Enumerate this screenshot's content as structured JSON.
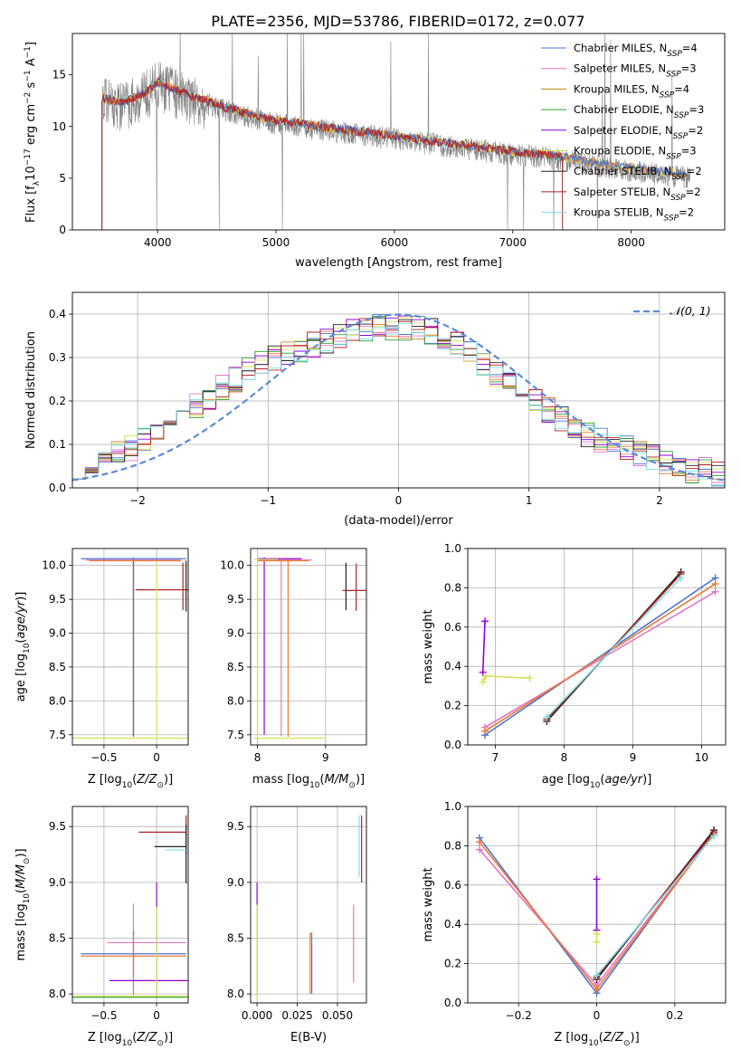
{
  "figure": {
    "title": "PLATE=2356, MJD=53786, FIBERID=0172, z=0.077"
  },
  "colors": {
    "Chabrier MILES": "#4878d0",
    "Salpeter MILES": "#e377c2",
    "Kroupa MILES": "#b8860b",
    "Chabrier ELODIE": "#2ca02c",
    "Salpeter ELODIE": "#9400d3",
    "Kroupa ELODIE": "#d4e157",
    "Chabrier STELIB": "#222222",
    "Salpeter STELIB": "#b22222",
    "Kroupa STELIB": "#7fdfe8",
    "orange": "#ee7733",
    "data": "#808080",
    "gauss": "#5b8ad8",
    "grid": "#b0b0b0"
  },
  "chart_data": [
    {
      "id": "spectrum",
      "type": "line",
      "xlabel": "wavelength [Angstrom, rest frame]",
      "ylabel": "Flux [f_λ 10^-17 erg cm^-2 s^-1 A^-1]",
      "xlim": [
        3280,
        8790
      ],
      "ylim": [
        0,
        19
      ],
      "xticks": [
        4000,
        5000,
        6000,
        7000,
        8000
      ],
      "yticks": [
        0,
        5,
        10,
        15
      ],
      "grid": false,
      "legend_position": "upper right",
      "legend": [
        {
          "name": "Chabrier MILES",
          "nssp": "4"
        },
        {
          "name": "Salpeter MILES",
          "nssp": "3"
        },
        {
          "name": "Kroupa MILES",
          "nssp": "4"
        },
        {
          "name": "Chabrier ELODIE",
          "nssp": "3"
        },
        {
          "name": "Salpeter ELODIE",
          "nssp": "2"
        },
        {
          "name": "Kroupa ELODIE",
          "nssp": "3"
        },
        {
          "name": "Chabrier STELIB",
          "nssp": "2"
        },
        {
          "name": "Salpeter STELIB",
          "nssp": "2"
        },
        {
          "name": "Kroupa STELIB",
          "nssp": "2"
        }
      ],
      "continuum_x": [
        3530,
        3700,
        3900,
        4000,
        4200,
        4500,
        4800,
        5000,
        5500,
        6000,
        6500,
        7000,
        7400,
        7700,
        8000,
        8500
      ],
      "continuum_y": [
        12.5,
        12.0,
        13.0,
        14.0,
        13.0,
        11.8,
        10.8,
        10.3,
        9.5,
        8.8,
        8.0,
        7.3,
        6.8,
        6.2,
        5.7,
        5.0
      ]
    },
    {
      "id": "residuals",
      "type": "histogram",
      "xlabel": "(data-model)/error",
      "ylabel": "Normed distribution",
      "xlim": [
        -2.5,
        2.5
      ],
      "ylim": [
        0,
        0.45
      ],
      "xticks": [
        -2,
        -1,
        0,
        1,
        2
      ],
      "yticks": [
        0.0,
        0.1,
        0.2,
        0.3,
        0.4
      ],
      "grid": true,
      "legend_label": "𝒩(0, 1)",
      "legend_position": "upper right",
      "bins": 50,
      "base_values": [
        0.05,
        0.06,
        0.07,
        0.08,
        0.09,
        0.11,
        0.13,
        0.15,
        0.17,
        0.19,
        0.21,
        0.23,
        0.25,
        0.27,
        0.29,
        0.3,
        0.31,
        0.32,
        0.33,
        0.34,
        0.35,
        0.36,
        0.36,
        0.37,
        0.37,
        0.37,
        0.37,
        0.36,
        0.35,
        0.33,
        0.31,
        0.28,
        0.26,
        0.24,
        0.22,
        0.2,
        0.18,
        0.16,
        0.14,
        0.12,
        0.11,
        0.1,
        0.09,
        0.08,
        0.07,
        0.06,
        0.05,
        0.04,
        0.04,
        0.03
      ]
    },
    {
      "id": "age-vs-Z",
      "type": "errorbar",
      "xlabel": "Z [log10(Z/Z⊙)]",
      "ylabel": "age [log10(age/yr)]",
      "xlim": [
        -0.8,
        0.3
      ],
      "ylim": [
        7.35,
        10.25
      ],
      "xticks": [
        -0.5,
        0.0
      ],
      "yticks": [
        7.5,
        8.0,
        8.5,
        9.0,
        9.5,
        10.0
      ],
      "grid": true,
      "points": [
        {
          "x": -0.22,
          "y": 10.1,
          "xerr": [
            0.5,
            0.5
          ],
          "yerr": [
            2.6,
            0.02
          ],
          "series": "Chabrier MILES"
        },
        {
          "x": -0.22,
          "y": 10.08,
          "xerr": [
            0.45,
            0.45
          ],
          "yerr": [
            2.6,
            0.02
          ],
          "series": "Salpeter MILES"
        },
        {
          "x": -0.22,
          "y": 10.07,
          "xerr": [
            0.42,
            0.45
          ],
          "yerr": [
            2.6,
            0.02
          ],
          "series": "orange"
        },
        {
          "x": 0.25,
          "y": 9.64,
          "xerr": [
            0.45,
            0.05
          ],
          "yerr": [
            0.3,
            0.4
          ],
          "series": "Salpeter STELIB"
        },
        {
          "x": 0.28,
          "y": 9.62,
          "xerr": [
            0.0,
            0.0
          ],
          "yerr": [
            0.3,
            0.45
          ],
          "series": "Chabrier STELIB"
        },
        {
          "x": 0.0,
          "y": 7.45,
          "xerr": [
            0.8,
            0.3
          ],
          "yerr": [
            0.0,
            2.6
          ],
          "series": "Kroupa ELODIE"
        },
        {
          "x": -0.22,
          "y": 7.47,
          "xerr": [
            0.0,
            0.0
          ],
          "yerr": [
            0.0,
            2.6
          ],
          "series": "Chabrier MILES"
        }
      ]
    },
    {
      "id": "age-vs-mass",
      "type": "errorbar",
      "xlabel": "mass [log10(M/M⊙)]",
      "ylabel": "",
      "xlim": [
        7.9,
        9.6
      ],
      "ylim": [
        7.35,
        10.25
      ],
      "xticks": [
        8,
        9
      ],
      "yticks": [
        7.5,
        8.0,
        8.5,
        9.0,
        9.5,
        10.0
      ],
      "grid": true,
      "points": [
        {
          "x": 8.1,
          "y": 10.1,
          "xerr": [
            0.1,
            0.55
          ],
          "yerr": [
            2.6,
            0.02
          ],
          "series": "Salpeter ELODIE"
        },
        {
          "x": 8.35,
          "y": 10.08,
          "xerr": [
            0.35,
            0.45
          ],
          "yerr": [
            2.6,
            0.02
          ],
          "series": "Salpeter MILES"
        },
        {
          "x": 8.45,
          "y": 10.07,
          "xerr": [
            0.45,
            0.3
          ],
          "yerr": [
            2.6,
            0.02
          ],
          "series": "orange"
        },
        {
          "x": 8.0,
          "y": 10.09,
          "xerr": [
            0.05,
            0.3
          ],
          "yerr": [
            2.6,
            0.02
          ],
          "series": "Kroupa ELODIE"
        },
        {
          "x": 9.3,
          "y": 9.64,
          "xerr": [
            0.0,
            0.0
          ],
          "yerr": [
            0.3,
            0.4
          ],
          "series": "Chabrier STELIB"
        },
        {
          "x": 9.45,
          "y": 9.63,
          "xerr": [
            0.2,
            0.2
          ],
          "yerr": [
            0.3,
            0.4
          ],
          "series": "Salpeter STELIB"
        },
        {
          "x": 8.0,
          "y": 7.45,
          "xerr": [
            0.05,
            1.0
          ],
          "yerr": [
            0.0,
            2.6
          ],
          "series": "Kroupa ELODIE"
        }
      ]
    },
    {
      "id": "weight-vs-age",
      "type": "line",
      "xlabel": "age [log10(age/yr)]",
      "ylabel": "mass weight",
      "xlim": [
        6.6,
        10.35
      ],
      "ylim": [
        0,
        1
      ],
      "xticks": [
        7,
        8,
        9,
        10
      ],
      "yticks": [
        0.0,
        0.2,
        0.4,
        0.6,
        0.8,
        1.0
      ],
      "grid": true,
      "series": [
        {
          "name": "Chabrier MILES",
          "x": [
            6.85,
            10.2
          ],
          "y": [
            0.05,
            0.85
          ]
        },
        {
          "name": "Salpeter MILES",
          "x": [
            6.85,
            10.2
          ],
          "y": [
            0.09,
            0.78
          ]
        },
        {
          "name": "orange",
          "x": [
            6.85,
            10.2
          ],
          "y": [
            0.07,
            0.82
          ]
        },
        {
          "name": "Chabrier STELIB",
          "x": [
            7.75,
            9.7
          ],
          "y": [
            0.12,
            0.88
          ]
        },
        {
          "name": "Salpeter STELIB",
          "x": [
            7.75,
            9.7
          ],
          "y": [
            0.13,
            0.87
          ]
        },
        {
          "name": "Kroupa STELIB",
          "x": [
            7.75,
            9.7
          ],
          "y": [
            0.14,
            0.85
          ]
        },
        {
          "name": "Salpeter ELODIE",
          "x": [
            6.82,
            6.85
          ],
          "y": [
            0.37,
            0.63
          ]
        },
        {
          "name": "Kroupa ELODIE",
          "x": [
            6.82,
            6.86,
            7.5
          ],
          "y": [
            0.32,
            0.35,
            0.34
          ]
        }
      ]
    },
    {
      "id": "mass-vs-Z",
      "type": "errorbar",
      "xlabel": "Z [log10(Z/Z⊙)]",
      "ylabel": "mass [log10(M/M⊙)]",
      "xlim": [
        -0.8,
        0.3
      ],
      "ylim": [
        7.92,
        9.68
      ],
      "xticks": [
        -0.5,
        0.0
      ],
      "yticks": [
        8.0,
        8.5,
        9.0,
        9.5
      ],
      "grid": true,
      "points": [
        {
          "x": 0.28,
          "y": 9.45,
          "xerr": [
            0.45,
            0.0
          ],
          "yerr": [
            0.2,
            0.15
          ],
          "series": "Salpeter STELIB"
        },
        {
          "x": 0.28,
          "y": 9.32,
          "xerr": [
            0.3,
            0.0
          ],
          "yerr": [
            0.33,
            0.2
          ],
          "series": "Chabrier STELIB"
        },
        {
          "x": 0.28,
          "y": 9.29,
          "xerr": [
            0.2,
            0.0
          ],
          "yerr": [
            0.0,
            0.0
          ],
          "series": "Kroupa STELIB"
        },
        {
          "x": -0.22,
          "y": 8.46,
          "xerr": [
            0.25,
            0.5
          ],
          "yerr": [
            0.3,
            0.35
          ],
          "series": "Salpeter MILES"
        },
        {
          "x": -0.22,
          "y": 8.36,
          "xerr": [
            0.5,
            0.5
          ],
          "yerr": [
            0.3,
            0.2
          ],
          "series": "Chabrier MILES"
        },
        {
          "x": -0.22,
          "y": 8.34,
          "xerr": [
            0.5,
            0.5
          ],
          "yerr": [
            0.35,
            0.2
          ],
          "series": "orange"
        },
        {
          "x": 0.0,
          "y": 8.12,
          "xerr": [
            0.45,
            0.3
          ],
          "yerr": [
            0.15,
            0.88
          ],
          "series": "Salpeter ELODIE"
        },
        {
          "x": 0.0,
          "y": 7.98,
          "xerr": [
            0.8,
            0.3
          ],
          "yerr": [
            0.0,
            0.8
          ],
          "series": "Kroupa ELODIE"
        },
        {
          "x": 0.0,
          "y": 7.97,
          "xerr": [
            0.8,
            0.3
          ],
          "yerr": [
            0.0,
            0.0
          ],
          "series": "Chabrier ELODIE"
        }
      ]
    },
    {
      "id": "mass-vs-ebv",
      "type": "errorbar",
      "xlabel": "E(B-V)",
      "ylabel": "",
      "xlim": [
        -0.004,
        0.068
      ],
      "ylim": [
        7.92,
        9.68
      ],
      "xticks": [
        0.0,
        0.025,
        0.05
      ],
      "xticklabels": [
        "0.000",
        "0.025",
        "0.050"
      ],
      "yticks": [
        8.0,
        8.5,
        9.0,
        9.5
      ],
      "grid": true,
      "points": [
        {
          "x": 0.0,
          "y": 8.4,
          "xerr": [
            0,
            0
          ],
          "yerr": [
            0.4,
            0.6
          ],
          "series": "Salpeter ELODIE"
        },
        {
          "x": 0.0,
          "y": 8.35,
          "xerr": [
            0,
            0
          ],
          "yerr": [
            0.4,
            0.45
          ],
          "series": "Kroupa ELODIE"
        },
        {
          "x": 0.033,
          "y": 8.3,
          "xerr": [
            0,
            0
          ],
          "yerr": [
            0.3,
            0.25
          ],
          "series": "orange"
        },
        {
          "x": 0.034,
          "y": 8.3,
          "xerr": [
            0,
            0
          ],
          "yerr": [
            0.3,
            0.25
          ],
          "series": "Chabrier MILES"
        },
        {
          "x": 0.06,
          "y": 8.45,
          "xerr": [
            0,
            0
          ],
          "yerr": [
            0.35,
            0.35
          ],
          "series": "Salpeter MILES"
        },
        {
          "x": 0.0635,
          "y": 9.3,
          "xerr": [
            0,
            0
          ],
          "yerr": [
            0.25,
            0.3
          ],
          "series": "Kroupa STELIB"
        },
        {
          "x": 0.065,
          "y": 9.3,
          "xerr": [
            0,
            0
          ],
          "yerr": [
            0.3,
            0.3
          ],
          "series": "Salpeter STELIB"
        }
      ]
    },
    {
      "id": "weight-vs-Z",
      "type": "line",
      "xlabel": "Z [log10(Z/Z⊙)]",
      "ylabel": "mass weight",
      "xlim": [
        -0.33,
        0.33
      ],
      "ylim": [
        0,
        1
      ],
      "xticks": [
        -0.2,
        0.0,
        0.2
      ],
      "yticks": [
        0.0,
        0.2,
        0.4,
        0.6,
        0.8,
        1.0
      ],
      "grid": true,
      "series": [
        {
          "name": "Chabrier MILES",
          "x": [
            -0.3,
            0.0,
            0.3
          ],
          "y": [
            0.84,
            0.05,
            0.87
          ]
        },
        {
          "name": "Salpeter MILES",
          "x": [
            -0.3,
            0.0,
            0.3
          ],
          "y": [
            0.78,
            0.09,
            0.86
          ]
        },
        {
          "name": "orange",
          "x": [
            -0.3,
            0.0,
            0.3
          ],
          "y": [
            0.82,
            0.07,
            0.86
          ]
        },
        {
          "name": "Chabrier STELIB",
          "x": [
            0.0,
            0.3
          ],
          "y": [
            0.12,
            0.88
          ]
        },
        {
          "name": "Salpeter STELIB",
          "x": [
            0.0,
            0.3
          ],
          "y": [
            0.13,
            0.87
          ]
        },
        {
          "name": "Kroupa STELIB",
          "x": [
            0.0,
            0.3
          ],
          "y": [
            0.14,
            0.85
          ]
        },
        {
          "name": "Salpeter ELODIE",
          "x": [
            0.0,
            0.0
          ],
          "y": [
            0.37,
            0.63
          ]
        },
        {
          "name": "Kroupa ELODIE",
          "x": [
            0.0,
            0.0
          ],
          "y": [
            0.31,
            0.35
          ]
        }
      ]
    }
  ]
}
